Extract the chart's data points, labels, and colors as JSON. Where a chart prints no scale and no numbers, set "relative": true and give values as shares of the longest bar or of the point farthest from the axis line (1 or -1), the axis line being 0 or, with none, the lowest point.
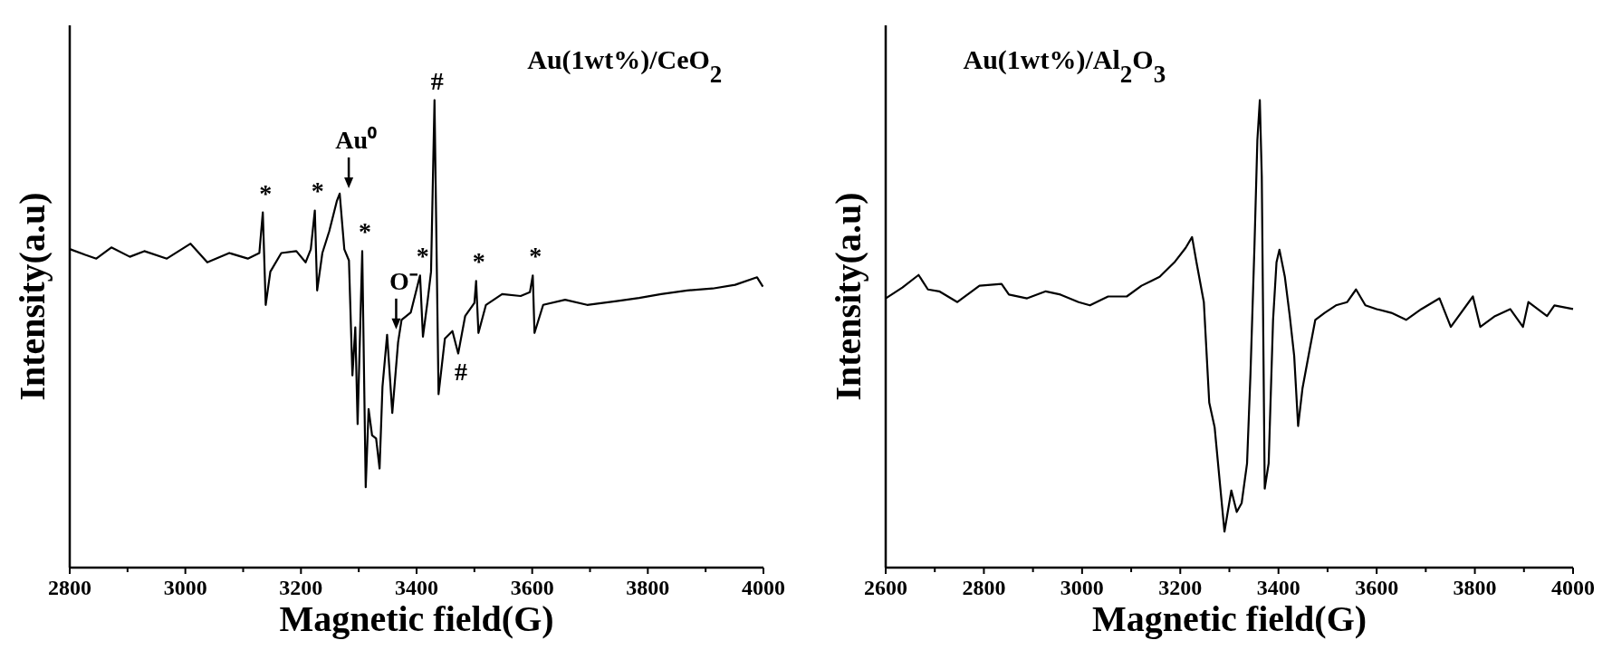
{
  "chart_data": [
    {
      "type": "line",
      "title": "Au(1wt%)/CeO$_{2}$",
      "xlabel": "Magnetic field(G)",
      "ylabel": "Intensity(a.u)",
      "relative": true,
      "color": "#000000",
      "tick_labels": "x",
      "grid": false,
      "xlim": [
        2800,
        4000
      ],
      "xticks": [
        2800,
        {
          "value": 2900,
          "label": null
        },
        3000,
        {
          "value": 3100,
          "label": null
        },
        3200,
        {
          "value": 3300,
          "label": null
        },
        3400,
        {
          "value": 3500,
          "label": null
        },
        3600,
        {
          "value": 3700,
          "label": null
        },
        3800,
        {
          "value": 3900,
          "label": null
        },
        4000
      ],
      "x": [
        2801,
        2827,
        2846,
        2872,
        2904,
        2929,
        2968,
        3009,
        3038,
        3076,
        3108,
        3128,
        3134,
        3139,
        3147,
        3166,
        3192,
        3208,
        3217,
        3224,
        3228,
        3237,
        3249,
        3262,
        3267,
        3275,
        3283,
        3289,
        3294,
        3298,
        3306,
        3312,
        3317,
        3323,
        3330,
        3336,
        3341,
        3349,
        3358,
        3368,
        3374,
        3390,
        3406,
        3411,
        3419,
        3425,
        3431,
        3438,
        3449,
        3462,
        3472,
        3484,
        3500,
        3503,
        3507,
        3520,
        3548,
        3580,
        3596,
        3601,
        3604,
        3619,
        3657,
        3695,
        3746,
        3785,
        3823,
        3868,
        3912,
        3951,
        3989,
        3999
      ],
      "values": [
        0.681,
        0.669,
        0.661,
        0.685,
        0.665,
        0.677,
        0.661,
        0.693,
        0.653,
        0.673,
        0.661,
        0.673,
        0.76,
        0.562,
        0.633,
        0.673,
        0.677,
        0.653,
        0.681,
        0.764,
        0.593,
        0.673,
        0.72,
        0.784,
        0.8,
        0.681,
        0.657,
        0.411,
        0.514,
        0.307,
        0.677,
        0.172,
        0.339,
        0.283,
        0.276,
        0.212,
        0.387,
        0.498,
        0.331,
        0.482,
        0.53,
        0.546,
        0.625,
        0.494,
        0.57,
        0.633,
        1.0,
        0.371,
        0.49,
        0.506,
        0.458,
        0.538,
        0.566,
        0.613,
        0.502,
        0.562,
        0.585,
        0.581,
        0.589,
        0.625,
        0.502,
        0.562,
        0.573,
        0.562,
        0.57,
        0.577,
        0.585,
        0.593,
        0.597,
        0.605,
        0.621,
        0.601
      ],
      "annotations": [
        {
          "text": "*",
          "x": 3134,
          "y": 0.76
        },
        {
          "text": "*",
          "x": 3224,
          "y": 0.764
        },
        {
          "text": "Au⁰",
          "x": 3267,
          "y": 0.8
        },
        {
          "text": "*",
          "x": 3306,
          "y": 0.677
        },
        {
          "text": "O⁻",
          "x": 3349,
          "y": 0.498
        },
        {
          "text": "*",
          "x": 3406,
          "y": 0.625
        },
        {
          "text": "#",
          "x": 3431,
          "y": 1.0
        },
        {
          "text": "*",
          "x": 3503,
          "y": 0.613
        },
        {
          "text": "*",
          "x": 3601,
          "y": 0.625
        },
        {
          "text": "#",
          "x": 3472,
          "y": 0.458
        }
      ]
    },
    {
      "type": "line",
      "title": "Au(1wt%)/Al$_{2}$O$_{3}$",
      "xlabel": "Magnetic field(G)",
      "ylabel": "Intensity(a.u)",
      "relative": true,
      "color": "#000000",
      "tick_labels": "x",
      "grid": false,
      "xlim": [
        2600,
        4000
      ],
      "xticks": [
        2600,
        {
          "value": 2700,
          "label": null
        },
        2800,
        {
          "value": 2900,
          "label": null
        },
        3000,
        {
          "value": 3100,
          "label": null
        },
        3200,
        {
          "value": 3300,
          "label": null
        },
        3400,
        {
          "value": 3500,
          "label": null
        },
        3600,
        {
          "value": 3700,
          "label": null
        },
        3800,
        {
          "value": 3900,
          "label": null
        },
        4000
      ],
      "x": [
        2600,
        2634,
        2667,
        2686,
        2709,
        2746,
        2791,
        2836,
        2851,
        2888,
        2926,
        2956,
        2993,
        3016,
        3053,
        3091,
        3121,
        3158,
        3188,
        3211,
        3224,
        3233,
        3248,
        3259,
        3270,
        3281,
        3290,
        3304,
        3315,
        3325,
        3336,
        3343,
        3351,
        3357,
        3362,
        3366,
        3372,
        3380,
        3389,
        3396,
        3402,
        3413,
        3423,
        3432,
        3440,
        3449,
        3464,
        3475,
        3494,
        3517,
        3540,
        3558,
        3577,
        3600,
        3630,
        3660,
        3691,
        3728,
        3751,
        3796,
        3811,
        3841,
        3872,
        3898,
        3909,
        3947,
        3962,
        4000
      ],
      "values": [
        0.576,
        0.599,
        0.626,
        0.595,
        0.591,
        0.568,
        0.603,
        0.607,
        0.584,
        0.576,
        0.591,
        0.584,
        0.568,
        0.561,
        0.58,
        0.58,
        0.603,
        0.622,
        0.653,
        0.684,
        0.707,
        0.653,
        0.568,
        0.353,
        0.3,
        0.177,
        0.077,
        0.165,
        0.119,
        0.138,
        0.223,
        0.415,
        0.684,
        0.914,
        1.0,
        0.837,
        0.169,
        0.223,
        0.53,
        0.653,
        0.68,
        0.622,
        0.538,
        0.453,
        0.303,
        0.384,
        0.469,
        0.53,
        0.545,
        0.561,
        0.568,
        0.595,
        0.561,
        0.553,
        0.545,
        0.53,
        0.553,
        0.576,
        0.515,
        0.58,
        0.515,
        0.538,
        0.553,
        0.515,
        0.568,
        0.538,
        0.561,
        0.553
      ]
    }
  ]
}
